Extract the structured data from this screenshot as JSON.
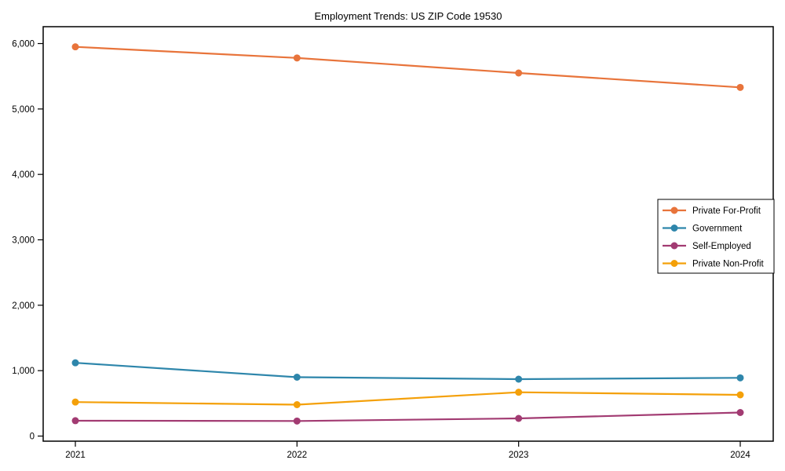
{
  "page": {
    "background_color": "#ffffff",
    "text_color": "#000000"
  },
  "chart_data": {
    "type": "line",
    "title": "Employment Trends: US ZIP Code 19530",
    "xlabel": "",
    "ylabel": "",
    "x": [
      2021,
      2022,
      2023,
      2024
    ],
    "x_tick_labels": [
      "2021",
      "2022",
      "2023",
      "2024"
    ],
    "yticks": [
      0,
      1000,
      2000,
      3000,
      4000,
      5000,
      6000
    ],
    "y_tick_labels": [
      "0",
      "1,000",
      "2,000",
      "3,000",
      "4,000",
      "5,000",
      "6,000"
    ],
    "ylim": [
      -80,
      6260
    ],
    "grid": false,
    "marker": "circle",
    "series": [
      {
        "name": "Private For-Profit",
        "color": "#e8743b",
        "values": [
          5950,
          5780,
          5550,
          5330
        ]
      },
      {
        "name": "Government",
        "color": "#2e86ab",
        "values": [
          1120,
          900,
          870,
          890
        ]
      },
      {
        "name": "Self-Employed",
        "color": "#a23b72",
        "values": [
          235,
          230,
          270,
          360
        ]
      },
      {
        "name": "Private Non-Profit",
        "color": "#f4a009",
        "values": [
          520,
          480,
          670,
          630
        ]
      }
    ],
    "legend": {
      "position": "center-right",
      "border": true,
      "entries": [
        "Private For-Profit",
        "Government",
        "Self-Employed",
        "Private Non-Profit"
      ]
    }
  }
}
